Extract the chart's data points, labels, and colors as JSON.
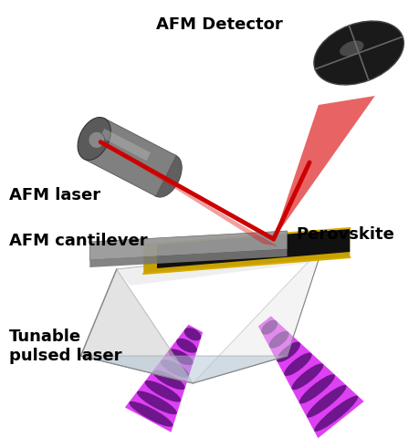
{
  "labels": {
    "afm_detector": "AFM Detector",
    "afm_laser": "AFM laser",
    "afm_cantilever": "AFM cantilever",
    "perovskite": "Perovskite",
    "tunable_laser": "Tunable\npulsed laser"
  },
  "bg_color": "#ffffff",
  "label_fontsize": 13,
  "label_fontweight": "bold",
  "fig_w": 4.59,
  "fig_h": 4.8,
  "dpi": 100
}
